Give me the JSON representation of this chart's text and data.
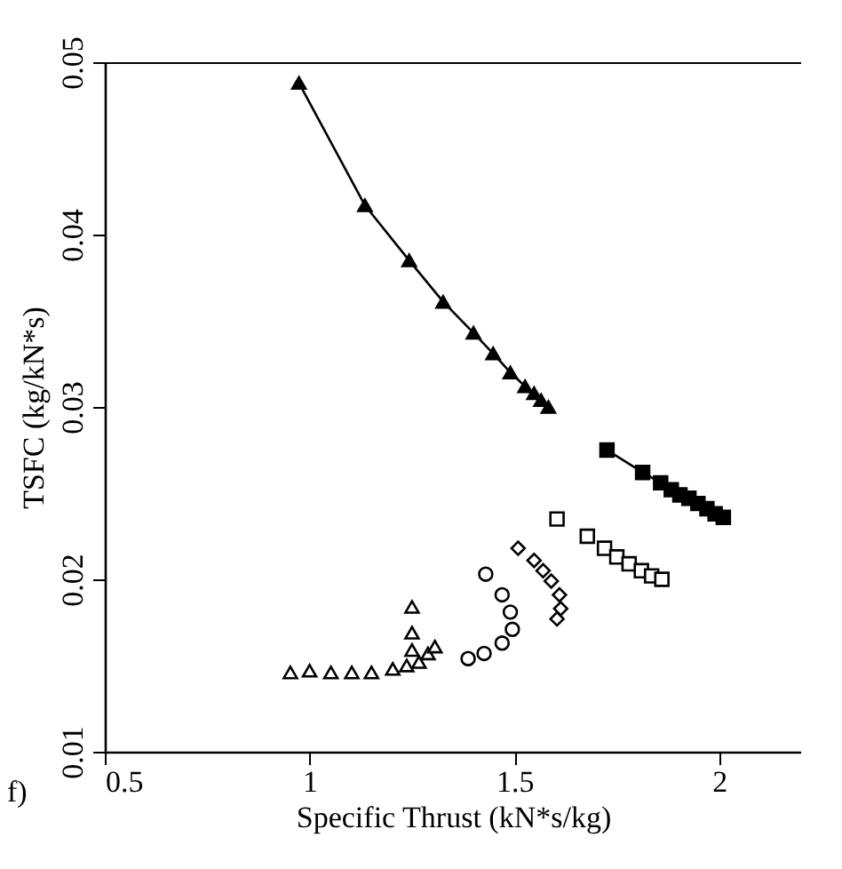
{
  "chart_data": {
    "type": "line",
    "xlabel": "Specific Thrust (kN*s/kg)",
    "ylabel": "TSFC (kg/kN*s)",
    "annotations": [
      "f)"
    ],
    "xlim": [
      0.5,
      2.2
    ],
    "xticks": [
      0.5,
      1,
      1.5,
      2
    ],
    "ylim": [
      0.01,
      0.05
    ],
    "yticks": [
      0.01,
      0.02,
      0.03,
      0.04,
      0.05
    ],
    "grid": false,
    "series": [
      {
        "type": "line",
        "marker": "triangle",
        "color": "#000000",
        "x": [
          0.974,
          1.135,
          1.243,
          1.326,
          1.4,
          1.448,
          1.49,
          1.526,
          1.548,
          1.565,
          1.583
        ],
        "values": [
          0.0488,
          0.0417,
          0.0385,
          0.0361,
          0.0343,
          0.0331,
          0.032,
          0.0312,
          0.0308,
          0.0304,
          0.03
        ]
      },
      {
        "type": "line",
        "marker": "square",
        "color": "#000000",
        "x": [
          1.726,
          1.813,
          1.857,
          1.883,
          1.904,
          1.926,
          1.948,
          1.97,
          1.99,
          2.01
        ],
        "values": [
          0.0275,
          0.0262,
          0.0256,
          0.0252,
          0.0249,
          0.0247,
          0.0244,
          0.0241,
          0.0238,
          0.0236
        ]
      },
      {
        "type": "scatter",
        "marker": "square",
        "color": "#000000",
        "x": [
          1.604,
          1.678,
          1.72,
          1.75,
          1.78,
          1.81,
          1.835,
          1.86
        ],
        "values": [
          0.0235,
          0.0225,
          0.0218,
          0.0213,
          0.0209,
          0.0205,
          0.0202,
          0.02
        ]
      },
      {
        "type": "scatter",
        "marker": "diamond",
        "color": "#000000",
        "x": [
          1.509,
          1.548,
          1.57,
          1.59,
          1.61,
          1.613,
          1.604
        ],
        "values": [
          0.0218,
          0.0211,
          0.0205,
          0.0199,
          0.0191,
          0.0183,
          0.0177
        ]
      },
      {
        "type": "scatter",
        "marker": "circle",
        "color": "#000000",
        "x": [
          1.43,
          1.47,
          1.49,
          1.495,
          1.47,
          1.426,
          1.387
        ],
        "values": [
          0.0203,
          0.0191,
          0.0181,
          0.0171,
          0.0163,
          0.0157,
          0.0154
        ]
      },
      {
        "type": "scatter",
        "marker": "triangle",
        "color": "#000000",
        "x": [
          0.953,
          1.0,
          1.052,
          1.103,
          1.151,
          1.203,
          1.237,
          1.267,
          1.289,
          1.306,
          1.25,
          1.25,
          1.25
        ],
        "values": [
          0.0146,
          0.0147,
          0.0146,
          0.0146,
          0.0146,
          0.0148,
          0.015,
          0.0152,
          0.0157,
          0.0161,
          0.0159,
          0.0169,
          0.0184
        ]
      }
    ]
  }
}
